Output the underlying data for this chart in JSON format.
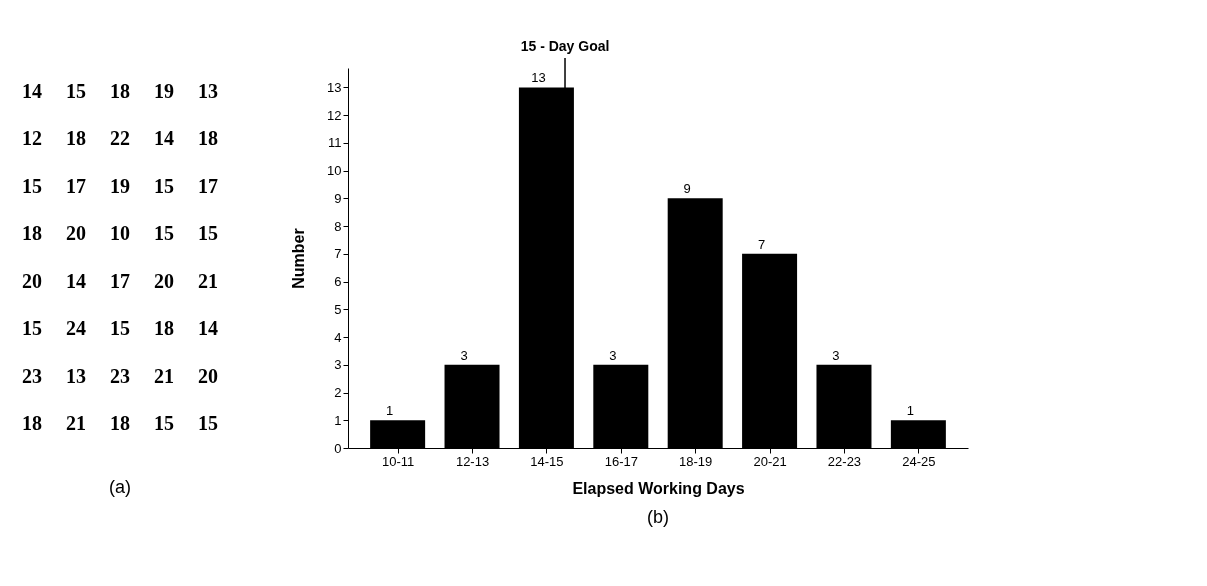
{
  "chart_data": [
    {
      "type": "other",
      "annotations": [
        "14 15 18 19 13",
        "12 18 22 14 18",
        "15 17 19 15 17",
        "18 20 10 15 15",
        "20 14 17 20 21",
        "15 24 15 18 14",
        "23 13 23 21 20",
        "18 21 18 15 15",
        "(a)"
      ]
    },
    {
      "type": "bar",
      "xlabel": "Elapsed Working Days",
      "ylabel": "Number",
      "categories": [
        "10-11",
        "12-13",
        "14-15",
        "16-17",
        "18-19",
        "20-21",
        "22-23",
        "24-25"
      ],
      "values": [
        1,
        3,
        13,
        3,
        9,
        7,
        3,
        1
      ],
      "color": "#000000",
      "data_labels": true,
      "ylim": [
        0,
        13.7
      ],
      "yticks": [
        0,
        1,
        2,
        3,
        4,
        5,
        6,
        7,
        8,
        9,
        10,
        11,
        12,
        13
      ],
      "grid": false,
      "ref_lines": [
        {
          "axis": "x",
          "value": "14-15",
          "label": "15 - Day Goal"
        }
      ],
      "annotations": [
        "(b)"
      ]
    }
  ]
}
